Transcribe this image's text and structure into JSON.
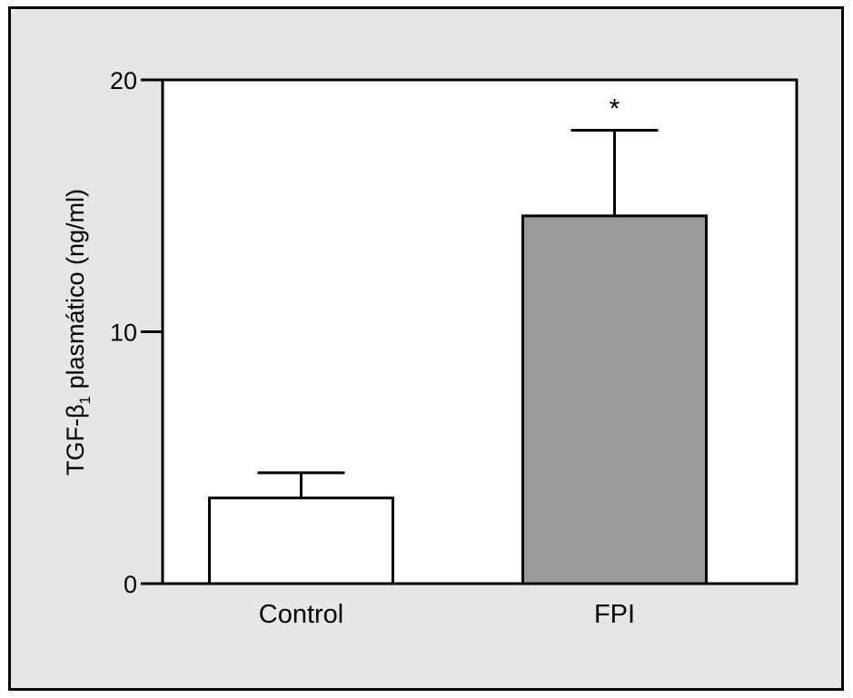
{
  "chart_data": {
    "type": "bar",
    "categories": [
      "Control",
      "FPI"
    ],
    "values": [
      3.4,
      14.6
    ],
    "error_upper": [
      4.4,
      18.0
    ],
    "bar_colors": [
      "#ffffff",
      "#9a9a9a"
    ],
    "ylim": [
      0,
      20
    ],
    "yticks": [
      "0",
      "10",
      "20"
    ],
    "ylabel": {
      "prefix": "TGF-β",
      "subscript": "1",
      "suffix": " plasmático (ng/ml)"
    },
    "annotations": [
      {
        "category": "FPI",
        "text": "*"
      }
    ],
    "grid": false
  }
}
